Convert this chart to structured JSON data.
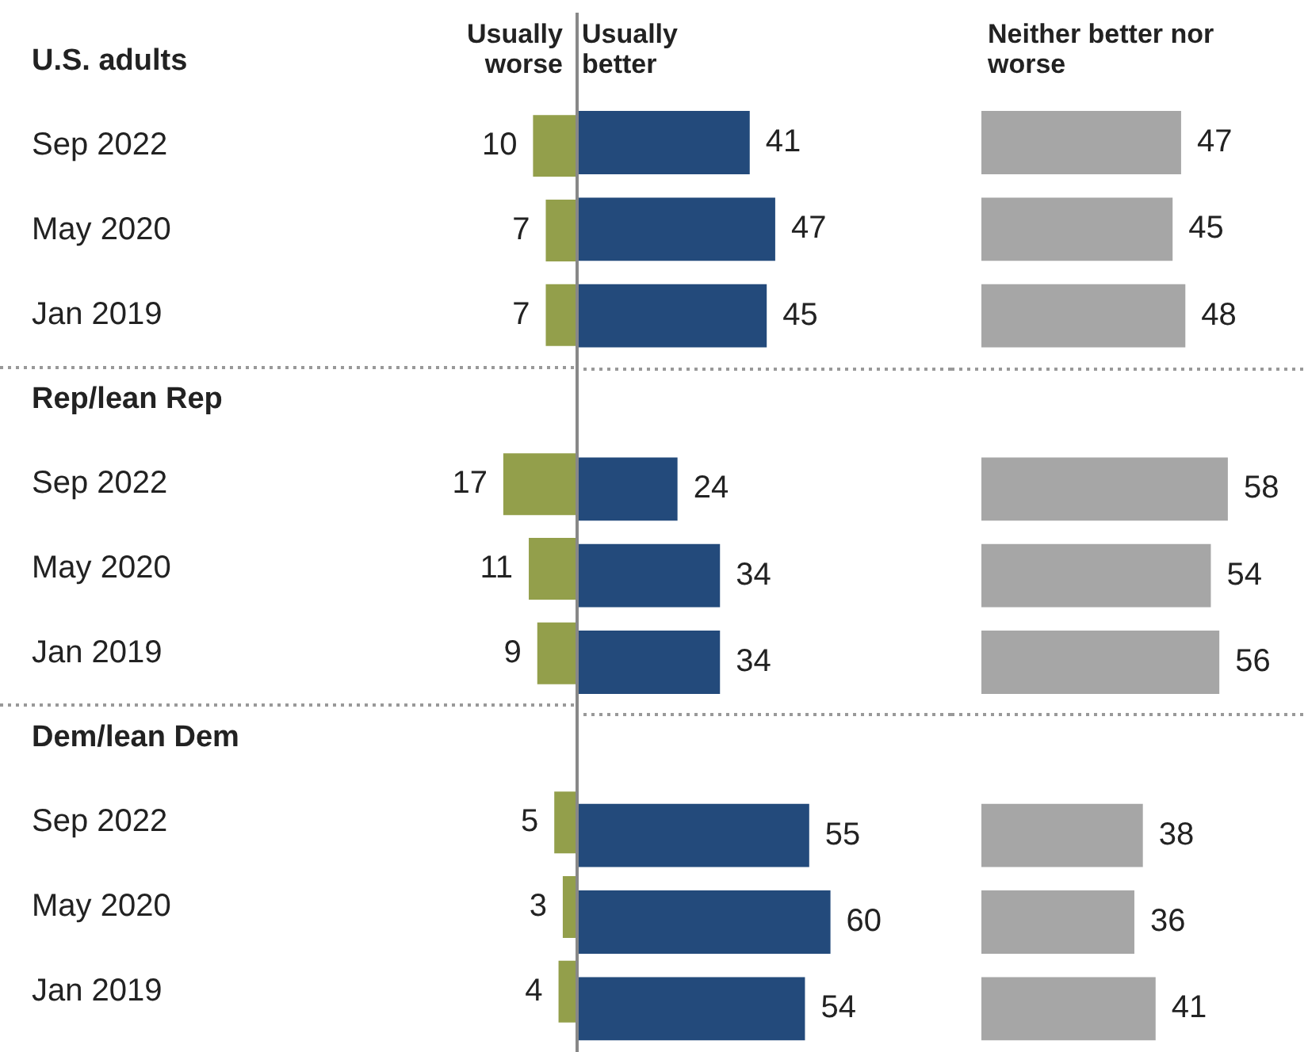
{
  "chart_data": [
    {
      "type": "bar",
      "orientation": "horizontal",
      "categories": [
        "U.S. adults",
        "Sep 2022",
        "May 2020",
        "Jan 2019",
        "Rep/lean Rep",
        "Sep 2022",
        "May 2020",
        "Jan 2019",
        "Dem/lean Dem",
        "Sep 2022",
        "May 2020",
        "Jan 2019"
      ],
      "tick_labels": "y",
      "data_labels": true,
      "ref_lines": [
        {
          "axis": "y",
          "value": "Rep/lean Rep",
          "color": "#999999",
          "line_style": "dotted"
        },
        {
          "axis": "y",
          "value": "Dem/lean Dem",
          "color": "#999999",
          "line_style": "dotted"
        }
      ],
      "series": [
        {
          "name": "Usually worse",
          "color": "#939f4b",
          "values": [
            null,
            10,
            7,
            7,
            null,
            17,
            11,
            9,
            null,
            5,
            3,
            4
          ]
        }
      ]
    },
    {
      "type": "bar",
      "orientation": "horizontal",
      "categories": [
        "U.S. adults",
        "Sep 2022",
        "May 2020",
        "Jan 2019",
        "Rep/lean Rep",
        "Sep 2022",
        "May 2020",
        "Jan 2019",
        "Dem/lean Dem",
        "Sep 2022",
        "May 2020",
        "Jan 2019"
      ],
      "tick_labels": false,
      "data_labels": true,
      "ref_lines": [
        {
          "axis": "y",
          "value": "Rep/lean Rep",
          "color": "#999999",
          "line_style": "dotted"
        },
        {
          "axis": "y",
          "value": "Dem/lean Dem",
          "color": "#999999",
          "line_style": "dotted"
        }
      ],
      "series": [
        {
          "name": "Usually better",
          "color": "#234a7b",
          "values": [
            null,
            41,
            47,
            45,
            null,
            24,
            34,
            34,
            null,
            55,
            60,
            54
          ]
        }
      ]
    },
    {
      "type": "bar",
      "orientation": "horizontal",
      "categories": [
        "U.S. adults",
        "Sep 2022",
        "May 2020",
        "Jan 2019",
        "Rep/lean Rep",
        "Sep 2022",
        "May 2020",
        "Jan 2019",
        "Dem/lean Dem",
        "Sep 2022",
        "May 2020",
        "Jan 2019"
      ],
      "tick_labels": false,
      "data_labels": true,
      "ref_lines": [
        {
          "axis": "y",
          "value": "Rep/lean Rep",
          "color": "#999999",
          "line_style": "dotted"
        },
        {
          "axis": "y",
          "value": "Dem/lean Dem",
          "color": "#999999",
          "line_style": "dotted"
        }
      ],
      "series": [
        {
          "name": "Neither better nor worse",
          "color": "#a6a6a6",
          "values": [
            null,
            47,
            45,
            48,
            null,
            58,
            54,
            56,
            null,
            38,
            36,
            41
          ]
        }
      ]
    }
  ]
}
